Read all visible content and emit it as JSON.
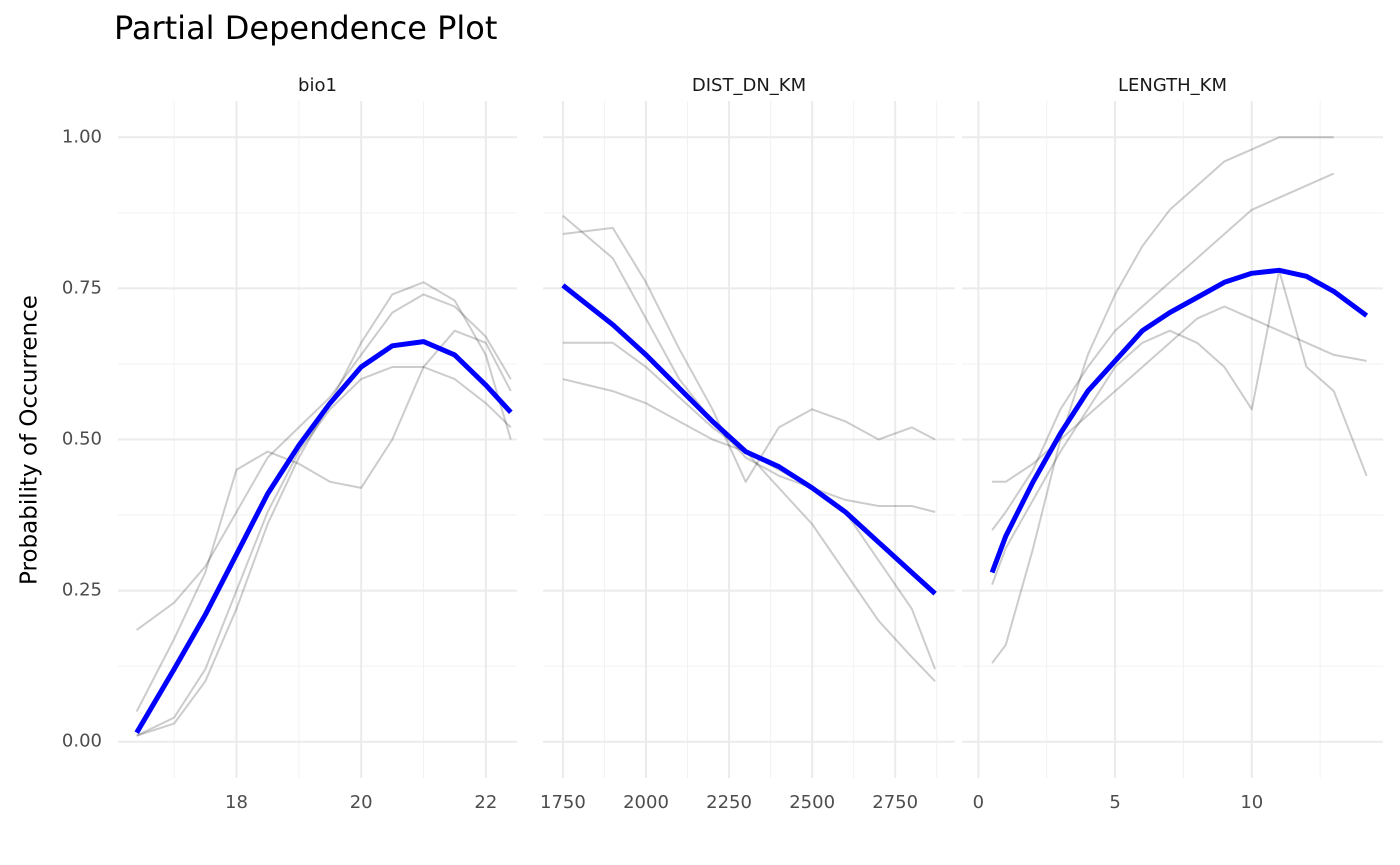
{
  "title": "Partial Dependence Plot",
  "y_label": "Probability of Occurrence",
  "y_axis": {
    "ylim": [
      -0.06,
      1.06
    ],
    "yticks": [
      {
        "value": 0,
        "label": "0.00"
      },
      {
        "value": 0.25,
        "label": "0.25"
      },
      {
        "value": 0.5,
        "label": "0.50"
      },
      {
        "value": 0.75,
        "label": "0.75"
      },
      {
        "value": 1,
        "label": "1.00"
      }
    ],
    "y_minor_ticks": [
      0.125,
      0.375,
      0.625,
      0.875
    ],
    "grid": true
  },
  "chart_data": [
    {
      "type": "line",
      "facet_label": "bio1",
      "x": [
        16.4,
        17,
        17.5,
        18,
        18.5,
        19,
        19.5,
        20,
        20.5,
        21,
        21.5,
        22,
        22.4
      ],
      "xlim": [
        16.1,
        22.5
      ],
      "xticks": [
        18,
        20,
        22
      ],
      "x_minor_ticks": [
        17,
        19,
        21
      ],
      "series": [
        {
          "color": "#000000",
          "values": [
            0.185,
            0.23,
            0.29,
            0.38,
            0.47,
            0.52,
            0.57,
            0.64,
            0.71,
            0.74,
            0.72,
            0.67,
            0.6
          ]
        },
        {
          "color": "#000000",
          "values": [
            0.01,
            0.03,
            0.1,
            0.22,
            0.36,
            0.47,
            0.56,
            0.66,
            0.74,
            0.76,
            0.73,
            0.64,
            0.5
          ]
        },
        {
          "color": "#000000",
          "values": [
            0.05,
            0.17,
            0.28,
            0.45,
            0.48,
            0.46,
            0.43,
            0.42,
            0.5,
            0.62,
            0.68,
            0.66,
            0.58
          ]
        },
        {
          "color": "#000000",
          "values": [
            0.01,
            0.04,
            0.12,
            0.25,
            0.38,
            0.48,
            0.55,
            0.6,
            0.62,
            0.62,
            0.6,
            0.56,
            0.52
          ]
        },
        {
          "color": "#0000ff",
          "values": [
            0.015,
            0.12,
            0.21,
            0.31,
            0.41,
            0.49,
            0.56,
            0.62,
            0.655,
            0.662,
            0.64,
            0.59,
            0.545
          ]
        }
      ]
    },
    {
      "type": "line",
      "facet_label": "DIST_DN_KM",
      "x": [
        1750,
        1900,
        2000,
        2100,
        2200,
        2300,
        2400,
        2500,
        2600,
        2700,
        2800,
        2870
      ],
      "xlim": [
        1690,
        2930
      ],
      "xticks": [
        1750,
        2000,
        2250,
        2500,
        2750
      ],
      "x_minor_ticks": [
        1875,
        2125,
        2375,
        2625,
        2875
      ],
      "series": [
        {
          "color": "#000000",
          "values": [
            0.87,
            0.8,
            0.7,
            0.6,
            0.53,
            0.47,
            0.44,
            0.42,
            0.38,
            0.3,
            0.22,
            0.12
          ]
        },
        {
          "color": "#000000",
          "values": [
            0.6,
            0.58,
            0.56,
            0.53,
            0.5,
            0.48,
            0.45,
            0.42,
            0.4,
            0.39,
            0.39,
            0.38
          ]
        },
        {
          "color": "#000000",
          "values": [
            0.84,
            0.85,
            0.76,
            0.65,
            0.55,
            0.43,
            0.52,
            0.55,
            0.53,
            0.5,
            0.52,
            0.5
          ]
        },
        {
          "color": "#000000",
          "values": [
            0.66,
            0.66,
            0.62,
            0.57,
            0.52,
            0.48,
            0.42,
            0.36,
            0.28,
            0.2,
            0.14,
            0.1
          ]
        },
        {
          "color": "#0000ff",
          "values": [
            0.755,
            0.69,
            0.64,
            0.585,
            0.53,
            0.48,
            0.455,
            0.42,
            0.38,
            0.33,
            0.28,
            0.245
          ]
        }
      ]
    },
    {
      "type": "line",
      "facet_label": "LENGTH_KM",
      "x": [
        0.5,
        1,
        2,
        3,
        4,
        5,
        6,
        7,
        8,
        9,
        10,
        11,
        12,
        13,
        14.2
      ],
      "xlim": [
        -0.6,
        14.8
      ],
      "xticks": [
        0,
        5,
        10
      ],
      "x_minor_ticks": [
        2.5,
        7.5,
        12.5
      ],
      "series": [
        {
          "color": "#000000",
          "values": [
            0.13,
            0.16,
            0.32,
            0.5,
            0.64,
            0.74,
            0.82,
            0.88,
            0.92,
            0.96,
            0.98,
            1.0,
            1.0,
            1.0,
            null
          ]
        },
        {
          "color": "#000000",
          "values": [
            0.43,
            0.43,
            0.46,
            0.5,
            0.54,
            0.58,
            0.62,
            0.66,
            0.7,
            0.72,
            0.7,
            0.68,
            0.66,
            0.64,
            0.63
          ]
        },
        {
          "color": "#000000",
          "values": [
            0.26,
            0.32,
            0.4,
            0.48,
            0.55,
            0.62,
            0.66,
            0.68,
            0.66,
            0.62,
            0.55,
            0.78,
            0.62,
            0.58,
            0.44
          ]
        },
        {
          "color": "#000000",
          "values": [
            0.35,
            0.38,
            0.45,
            0.55,
            0.62,
            0.68,
            0.72,
            0.76,
            0.8,
            0.84,
            0.88,
            0.9,
            0.92,
            0.94,
            null
          ]
        },
        {
          "color": "#0000ff",
          "values": [
            0.28,
            0.34,
            0.43,
            0.51,
            0.58,
            0.63,
            0.68,
            0.71,
            0.735,
            0.76,
            0.775,
            0.78,
            0.77,
            0.745,
            0.705
          ]
        }
      ]
    }
  ]
}
